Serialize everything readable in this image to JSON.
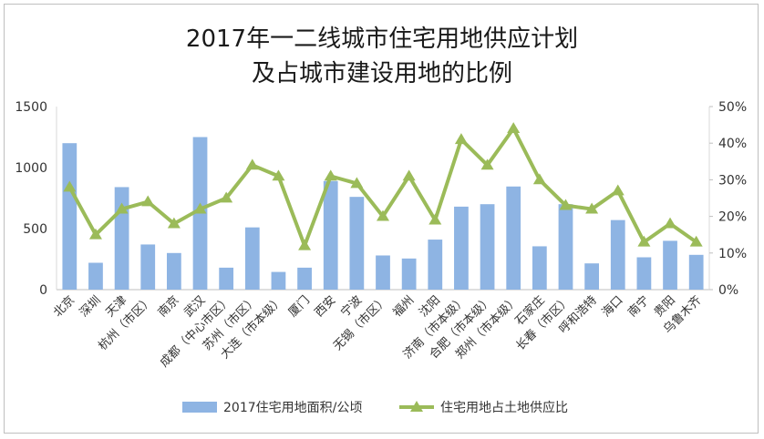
{
  "chart_data": {
    "type": "bar",
    "title_line1": "2017年一二线城市住宅用地供应计划",
    "title_line2": "及占城市建设用地的比例",
    "categories": [
      "北京",
      "深圳",
      "天津",
      "杭州（市区）",
      "南京",
      "武汉",
      "成都（中心市区）",
      "苏州（市区）",
      "大连（市本级）",
      "厦门",
      "西安",
      "宁波",
      "无锡（市区）",
      "福州",
      "沈阳",
      "济南（市本级）",
      "合肥（市本级）",
      "郑州（市本级）",
      "石家庄",
      "长春（市区）",
      "呼和浩特",
      "海口",
      "南宁",
      "贵阳",
      "乌鲁木齐"
    ],
    "series": [
      {
        "name": "2017住宅用地面积/公顷",
        "type": "bar",
        "axis": "left",
        "color": "#8eb4e3",
        "values": [
          1200,
          220,
          840,
          370,
          300,
          1250,
          180,
          510,
          145,
          180,
          890,
          760,
          280,
          255,
          410,
          680,
          700,
          845,
          355,
          700,
          215,
          570,
          265,
          400,
          285
        ]
      },
      {
        "name": "住宅用地占土地供应比",
        "type": "line",
        "axis": "right",
        "color": "#9bbb59",
        "values": [
          0.28,
          0.15,
          0.22,
          0.24,
          0.18,
          0.22,
          0.25,
          0.34,
          0.31,
          0.12,
          0.31,
          0.29,
          0.2,
          0.31,
          0.19,
          0.41,
          0.34,
          0.44,
          0.3,
          0.23,
          0.22,
          0.27,
          0.13,
          0.18,
          0.13
        ]
      }
    ],
    "y_left": {
      "min": 0,
      "max": 1500,
      "ticks": [
        "0",
        "500",
        "1000",
        "1500"
      ]
    },
    "y_right": {
      "min": 0,
      "max": 0.5,
      "ticks": [
        "0%",
        "10%",
        "20%",
        "30%",
        "40%",
        "50%"
      ]
    },
    "grid": true,
    "legend": "bottom"
  }
}
